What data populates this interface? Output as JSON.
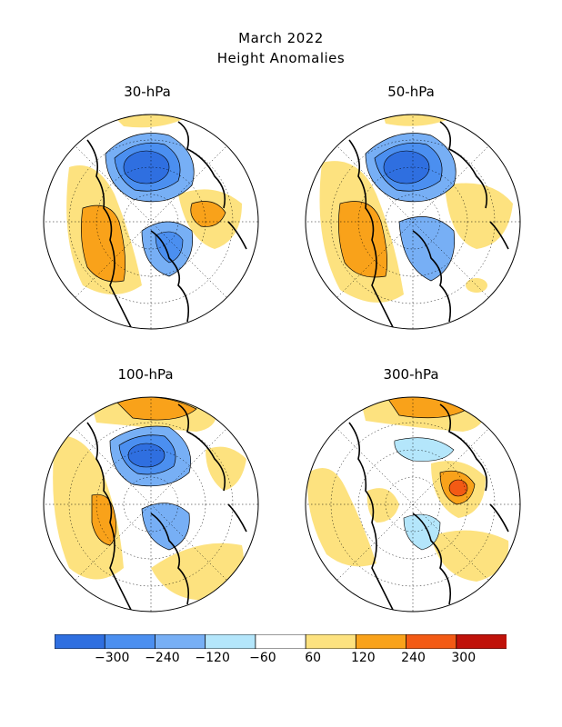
{
  "title": "March 2022",
  "subtitle": "Height Anomalies",
  "panels": [
    {
      "label": "30-hPa"
    },
    {
      "label": "50-hPa"
    },
    {
      "label": "100-hPa"
    },
    {
      "label": "300-hPa"
    }
  ],
  "colorbar": {
    "colors": [
      "#2f6fe0",
      "#4b8ff0",
      "#77aff5",
      "#b4e6fb",
      "#ffffff",
      "#fde27f",
      "#f9a21a",
      "#f35a14",
      "#c0120a"
    ],
    "tick_labels": [
      "−300",
      "−240",
      "−120",
      "−60",
      "60",
      "120",
      "240",
      "300"
    ]
  },
  "colors": {
    "coast": "#000000",
    "contour": "#000000"
  }
}
